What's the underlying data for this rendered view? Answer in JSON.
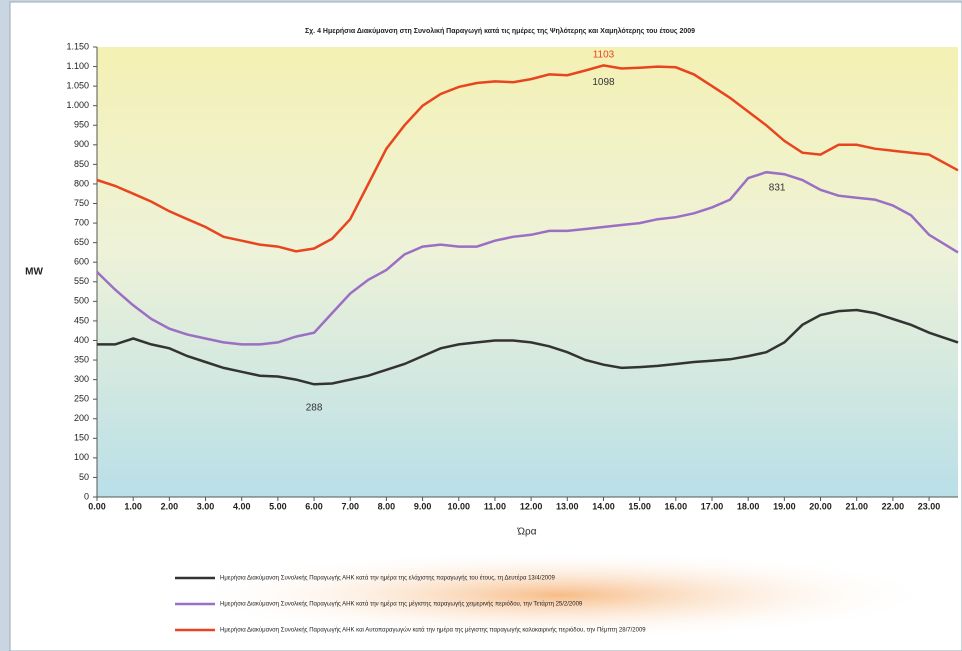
{
  "chart_data": {
    "type": "line",
    "title": "Σχ. 4 Ημερήσια Διακύμανση στη Συνολική Παραγωγή κατά τις ημέρες της Ψηλότερης και Χαμηλότερης του έτους 2009",
    "xlabel": "Ώρα",
    "ylabel": "MW",
    "x": [
      0,
      0.5,
      1,
      1.5,
      2,
      2.5,
      3,
      3.5,
      4,
      4.5,
      5,
      5.5,
      6,
      6.5,
      7,
      7.5,
      8,
      8.5,
      9,
      9.5,
      10,
      10.5,
      11,
      11.5,
      12,
      12.5,
      13,
      13.5,
      14,
      14.5,
      15,
      15.5,
      16,
      16.5,
      17,
      17.5,
      18,
      18.5,
      19,
      19.5,
      20,
      20.5,
      21,
      21.5,
      22,
      22.5,
      23,
      23.8
    ],
    "series": [
      {
        "name": "Ημερήσια Διακύμανση Συνολικής Παραγωγής ΑΗΚ κατά την ημέρα της ελάχιστης παραγωγής του έτους, τη Δευτέρα 13/4/2009",
        "color": "#333333",
        "values": [
          390,
          390,
          405,
          390,
          380,
          360,
          345,
          330,
          320,
          310,
          308,
          300,
          288,
          290,
          300,
          310,
          325,
          340,
          360,
          380,
          390,
          395,
          400,
          400,
          395,
          385,
          370,
          350,
          338,
          330,
          332,
          335,
          340,
          345,
          348,
          352,
          360,
          370,
          395,
          440,
          465,
          475,
          478,
          470,
          455,
          440,
          420,
          395
        ]
      },
      {
        "name": "Ημερήσια Διακύμανση Συνολικής Παραγωγής ΑΗΚ κατά την ημέρα της μέγιστης παραγωγής χειμερινής περιόδου, την Τετάρτη 25/2/2009",
        "color": "#9b6fc4",
        "values": [
          575,
          530,
          490,
          455,
          430,
          415,
          405,
          395,
          390,
          390,
          395,
          410,
          420,
          470,
          520,
          555,
          580,
          620,
          640,
          645,
          640,
          640,
          655,
          665,
          670,
          680,
          680,
          685,
          690,
          695,
          700,
          710,
          715,
          725,
          740,
          760,
          815,
          830,
          825,
          810,
          785,
          770,
          765,
          760,
          745,
          720,
          670,
          625
        ]
      },
      {
        "name": "Ημερήσια Διακύμανση Συνολικής Παραγωγής ΑΗΚ και Αυτοπαραγωγών κατά την ημέρα της μέγιστης παραγωγής καλοκαιρινής περιόδου, την Πέμπτη 28/7/2009",
        "color": "#e8451e",
        "values": [
          810,
          795,
          775,
          755,
          730,
          710,
          690,
          665,
          655,
          645,
          640,
          628,
          635,
          660,
          710,
          800,
          890,
          950,
          1000,
          1030,
          1048,
          1058,
          1062,
          1060,
          1068,
          1080,
          1078,
          1090,
          1103,
          1095,
          1097,
          1100,
          1098,
          1080,
          1050,
          1020,
          985,
          950,
          910,
          880,
          875,
          900,
          900,
          890,
          885,
          880,
          875,
          835
        ]
      }
    ],
    "annotations": [
      "1103",
      "1098",
      "831",
      "288"
    ],
    "xlim": [
      0,
      23.8
    ],
    "xticks": [
      {
        "value": 0,
        "label": "0.00"
      },
      {
        "value": 1,
        "label": "1.00"
      },
      {
        "value": 2,
        "label": "2.00"
      },
      {
        "value": 3,
        "label": "3.00"
      },
      {
        "value": 4,
        "label": "4.00"
      },
      {
        "value": 5,
        "label": "5.00"
      },
      {
        "value": 6,
        "label": "6.00"
      },
      {
        "value": 7,
        "label": "7.00"
      },
      {
        "value": 8,
        "label": "8.00"
      },
      {
        "value": 9,
        "label": "9.00"
      },
      {
        "value": 10,
        "label": "10.00"
      },
      {
        "value": 11,
        "label": "11.00"
      },
      {
        "value": 12,
        "label": "12.00"
      },
      {
        "value": 13,
        "label": "13.00"
      },
      {
        "value": 14,
        "label": "14.00"
      },
      {
        "value": 15,
        "label": "15.00"
      },
      {
        "value": 16,
        "label": "16.00"
      },
      {
        "value": 17,
        "label": "17.00"
      },
      {
        "value": 18,
        "label": "18.00"
      },
      {
        "value": 19,
        "label": "19.00"
      },
      {
        "value": 20,
        "label": "20.00"
      },
      {
        "value": 21,
        "label": "21.00"
      },
      {
        "value": 22,
        "label": "22.00"
      },
      {
        "value": 23,
        "label": "23.00"
      }
    ],
    "ylim": [
      0,
      1150
    ],
    "yticks": [
      0,
      50,
      100,
      150,
      200,
      250,
      300,
      350,
      400,
      450,
      500,
      550,
      600,
      650,
      700,
      750,
      800,
      850,
      900,
      950,
      {
        "value": 1000,
        "label": "1.000"
      },
      {
        "value": 1050,
        "label": "1.050"
      },
      {
        "value": 1100,
        "label": "1.100"
      },
      {
        "value": 1150,
        "label": "1.150"
      }
    ],
    "grid": false
  }
}
